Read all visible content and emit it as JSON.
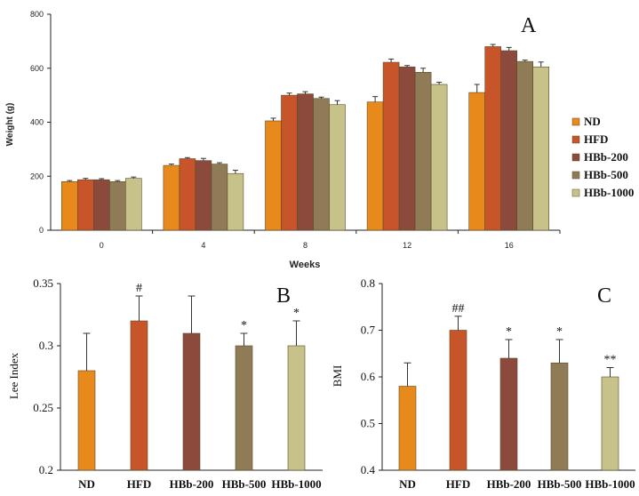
{
  "chart_data": [
    {
      "panel": "A",
      "type": "bar",
      "ylabel": "Weight (g)",
      "xlabel": "Weeks",
      "categories": [
        "0",
        "4",
        "8",
        "12",
        "16"
      ],
      "ylim": [
        0,
        800
      ],
      "yticks": [
        "0",
        "200",
        "400",
        "600",
        "800"
      ],
      "series": [
        {
          "name": "ND",
          "color": "#E8891C",
          "values": [
            180,
            240,
            405,
            475,
            510
          ],
          "errors": [
            4,
            5,
            10,
            20,
            30
          ]
        },
        {
          "name": "HFD",
          "color": "#C8552A",
          "values": [
            187,
            265,
            500,
            622,
            680
          ],
          "errors": [
            5,
            4,
            8,
            12,
            8
          ]
        },
        {
          "name": "HBb-200",
          "color": "#8B4A3C",
          "values": [
            187,
            258,
            505,
            605,
            665
          ],
          "errors": [
            4,
            8,
            8,
            5,
            12
          ]
        },
        {
          "name": "HBb-500",
          "color": "#8F7B55",
          "values": [
            180,
            245,
            488,
            585,
            625
          ],
          "errors": [
            4,
            5,
            5,
            15,
            5
          ]
        },
        {
          "name": "HBb-1000",
          "color": "#C7C28A",
          "values": [
            192,
            210,
            465,
            540,
            605
          ],
          "errors": [
            5,
            12,
            15,
            8,
            18
          ]
        }
      ]
    },
    {
      "panel": "B",
      "type": "bar",
      "ylabel": "Lee Index",
      "categories": [
        "ND",
        "HFD",
        "HBb-200",
        "HBb-500",
        "HBb-1000"
      ],
      "ylim": [
        0.2,
        0.35
      ],
      "yticks": [
        "0.2",
        "0.25",
        "0.3",
        "0.35"
      ],
      "values": [
        0.28,
        0.32,
        0.31,
        0.3,
        0.3
      ],
      "errors": [
        0.03,
        0.02,
        0.03,
        0.01,
        0.02
      ],
      "colors": [
        "#E8891C",
        "#C8552A",
        "#8B4A3C",
        "#8F7B55",
        "#C7C28A"
      ],
      "annotations": [
        "",
        "#",
        "",
        "*",
        "*"
      ]
    },
    {
      "panel": "C",
      "type": "bar",
      "ylabel": "BMI",
      "categories": [
        "ND",
        "HFD",
        "HBb-200",
        "HBb-500",
        "HBb-1000"
      ],
      "ylim": [
        0.4,
        0.8
      ],
      "yticks": [
        "0.4",
        "0.5",
        "0.6",
        "0.7",
        "0.8"
      ],
      "values": [
        0.58,
        0.7,
        0.64,
        0.63,
        0.6
      ],
      "errors": [
        0.05,
        0.03,
        0.04,
        0.05,
        0.02
      ],
      "colors": [
        "#E8891C",
        "#C8552A",
        "#8B4A3C",
        "#8F7B55",
        "#C7C28A"
      ],
      "annotations": [
        "",
        "##",
        "*",
        "*",
        "**"
      ]
    }
  ]
}
